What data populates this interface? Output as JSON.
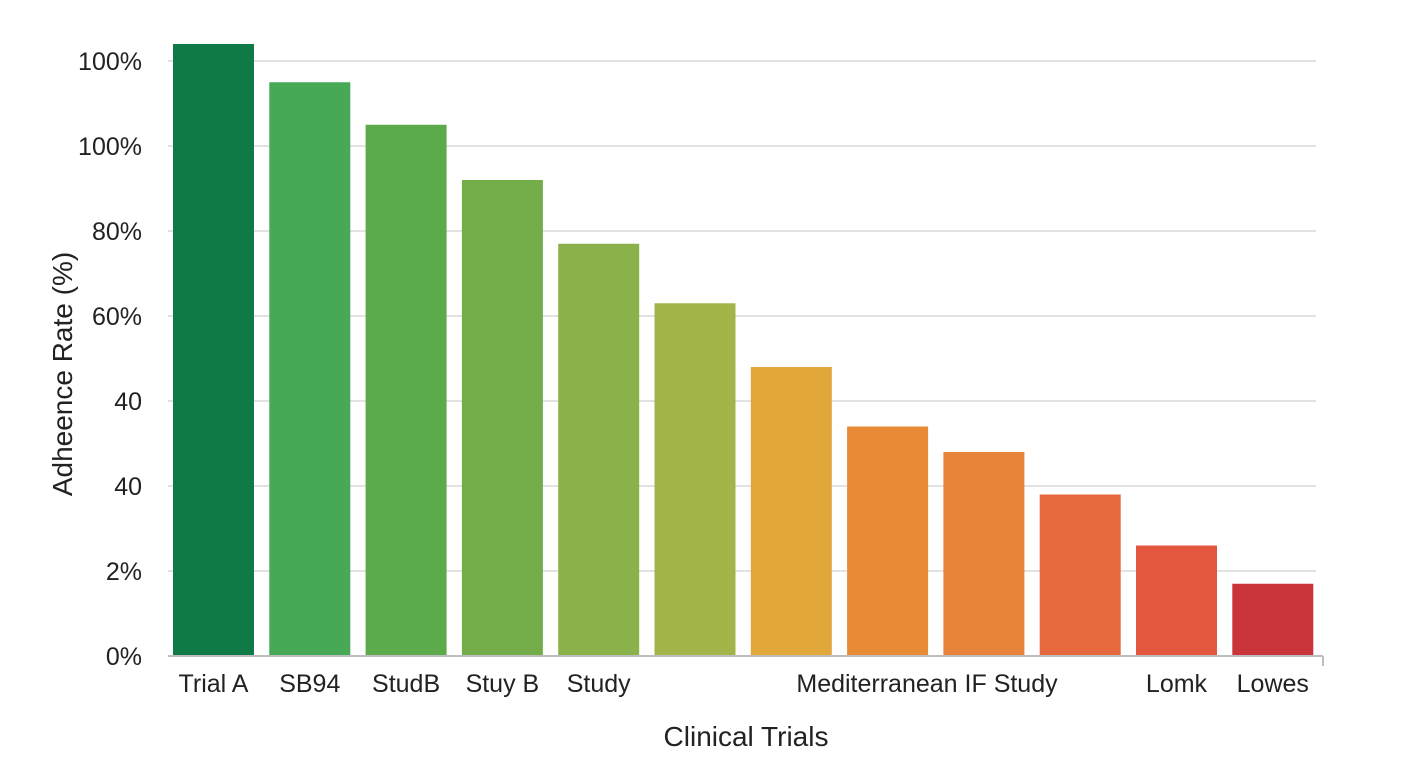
{
  "chart_data": {
    "type": "bar",
    "title": "",
    "xlabel": "Clinical Trials",
    "ylabel": "Adheence Rate (%)",
    "ytick_labels": [
      "0%",
      "2%",
      "40",
      "40",
      "60%",
      "80%",
      "100%",
      "100%"
    ],
    "ylim": [
      0,
      140
    ],
    "grid": true,
    "legend": "none",
    "categories": [
      "Trial A",
      "SB94",
      "StudB",
      "Stuy B",
      "Study",
      "",
      "Mediterranean IF Study",
      "",
      "",
      "",
      "Lomk",
      "Lowes"
    ],
    "values": [
      144,
      135,
      125,
      112,
      97,
      83,
      68,
      54,
      48,
      38,
      26,
      17
    ],
    "colors": [
      "#0f7a45",
      "#47a955",
      "#5caa4c",
      "#72ad4a",
      "#8bb24a",
      "#a3b548",
      "#e1a73a",
      "#e88a36",
      "#e8843a",
      "#e5683f",
      "#e4573f",
      "#c9353a"
    ]
  }
}
